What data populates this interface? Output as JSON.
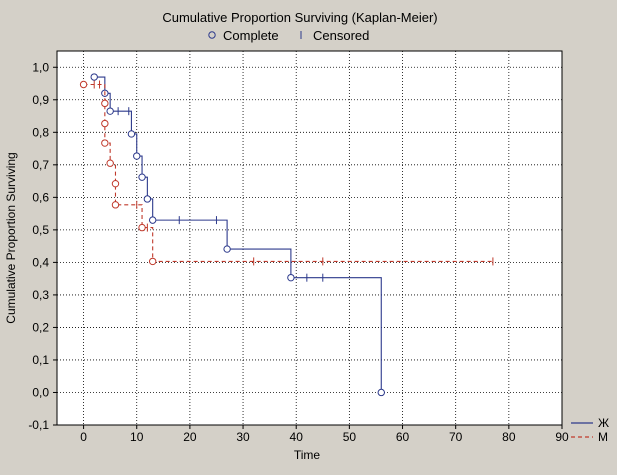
{
  "chart_data": {
    "type": "line",
    "title": "Cumulative Proportion Surviving (Kaplan-Meier)",
    "xlabel": "Time",
    "ylabel": "Cumulative Proportion Surviving",
    "xlim": [
      -5,
      90
    ],
    "ylim": [
      -0.1,
      1.05
    ],
    "x_ticks": [
      0,
      10,
      20,
      30,
      40,
      50,
      60,
      70,
      80,
      90
    ],
    "y_ticks": [
      -0.1,
      0.0,
      0.1,
      0.2,
      0.3,
      0.4,
      0.5,
      0.6,
      0.7,
      0.8,
      0.9,
      1.0
    ],
    "x_tick_labels": [
      "0",
      "10",
      "20",
      "30",
      "40",
      "50",
      "60",
      "70",
      "80",
      "90"
    ],
    "y_tick_labels": [
      "-0,1",
      "0,0",
      "0,1",
      "0,2",
      "0,3",
      "0,4",
      "0,5",
      "0,6",
      "0,7",
      "0,8",
      "0,9",
      "1,0"
    ],
    "grid": true,
    "legend_top": {
      "complete_label": "Complete",
      "censored_label": "Censored"
    },
    "series": [
      {
        "name": "Ж",
        "color": "#2d3a8c",
        "dashed": false,
        "steps": [
          [
            2,
            0.97
          ],
          [
            4,
            0.92
          ],
          [
            5,
            0.865
          ],
          [
            9,
            0.795
          ],
          [
            10,
            0.727
          ],
          [
            11,
            0.662
          ],
          [
            12,
            0.595
          ],
          [
            13,
            0.53
          ],
          [
            27,
            0.441
          ],
          [
            39,
            0.353
          ],
          [
            56,
            0.0
          ]
        ],
        "end_x": 56,
        "events": [
          [
            2,
            0.97
          ],
          [
            4,
            0.92
          ],
          [
            5,
            0.865
          ],
          [
            9,
            0.795
          ],
          [
            10,
            0.727
          ],
          [
            11,
            0.662
          ],
          [
            12,
            0.595
          ],
          [
            13,
            0.53
          ],
          [
            27,
            0.441
          ],
          [
            39,
            0.353
          ],
          [
            56,
            0.0
          ]
        ],
        "censored": [
          [
            6.5,
            0.865
          ],
          [
            8.5,
            0.865
          ],
          [
            18,
            0.53
          ],
          [
            25,
            0.53
          ],
          [
            42,
            0.353
          ],
          [
            45,
            0.353
          ]
        ]
      },
      {
        "name": "М",
        "color": "#c0392b",
        "dashed": true,
        "steps": [
          [
            0,
            0.947
          ],
          [
            4,
            0.889
          ],
          [
            4,
            0.827
          ],
          [
            4,
            0.767
          ],
          [
            5,
            0.705
          ],
          [
            6,
            0.642
          ],
          [
            6,
            0.577
          ],
          [
            11,
            0.507
          ],
          [
            13,
            0.403
          ]
        ],
        "end_x": 77,
        "events": [
          [
            0,
            0.947
          ],
          [
            4,
            0.889
          ],
          [
            4,
            0.827
          ],
          [
            4,
            0.767
          ],
          [
            5,
            0.705
          ],
          [
            6,
            0.642
          ],
          [
            6,
            0.577
          ],
          [
            11,
            0.507
          ],
          [
            13,
            0.403
          ]
        ],
        "censored": [
          [
            2,
            0.947
          ],
          [
            3,
            0.947
          ],
          [
            10,
            0.577
          ],
          [
            12,
            0.507
          ],
          [
            32,
            0.403
          ],
          [
            45,
            0.403
          ],
          [
            77,
            0.403
          ]
        ]
      }
    ]
  }
}
